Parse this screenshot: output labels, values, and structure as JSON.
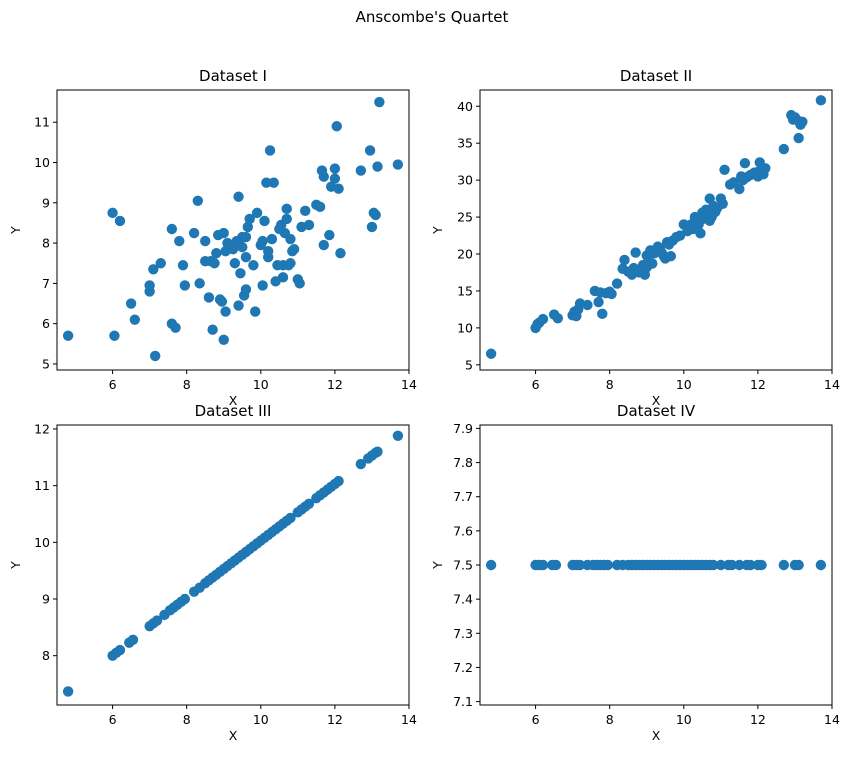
{
  "figure": {
    "suptitle": "Anscombe's Quartet"
  },
  "colors": {
    "marker": "#1f77b4",
    "axes": "#000000",
    "background": "#ffffff"
  },
  "chart_data": [
    {
      "type": "scatter",
      "title": "Dataset I",
      "xlabel": "X",
      "ylabel": "Y",
      "xlim": [
        4.5,
        14
      ],
      "ylim": [
        4.85,
        11.8
      ],
      "xticks": [
        6,
        8,
        10,
        12,
        14
      ],
      "yticks": [
        5,
        6,
        7,
        8,
        9,
        10,
        11
      ],
      "ytick_labels": [
        "5",
        "6",
        "7",
        "8",
        "9",
        "10",
        "11"
      ],
      "grid": false,
      "points": [
        [
          4.8,
          5.7
        ],
        [
          6.0,
          8.75
        ],
        [
          6.2,
          8.55
        ],
        [
          6.05,
          5.7
        ],
        [
          6.5,
          6.5
        ],
        [
          6.6,
          6.1
        ],
        [
          7.0,
          6.8
        ],
        [
          7.0,
          6.95
        ],
        [
          7.1,
          7.35
        ],
        [
          7.15,
          5.2
        ],
        [
          7.3,
          7.5
        ],
        [
          7.6,
          8.35
        ],
        [
          7.6,
          6.0
        ],
        [
          7.7,
          5.9
        ],
        [
          7.8,
          8.05
        ],
        [
          7.9,
          7.45
        ],
        [
          7.95,
          6.95
        ],
        [
          8.2,
          8.25
        ],
        [
          8.3,
          9.05
        ],
        [
          8.35,
          7.0
        ],
        [
          8.5,
          8.05
        ],
        [
          8.5,
          7.55
        ],
        [
          8.6,
          6.65
        ],
        [
          8.65,
          7.55
        ],
        [
          8.7,
          5.85
        ],
        [
          8.75,
          7.5
        ],
        [
          8.8,
          7.75
        ],
        [
          8.85,
          8.2
        ],
        [
          8.9,
          6.6
        ],
        [
          8.95,
          6.55
        ],
        [
          9.0,
          8.25
        ],
        [
          9.0,
          5.6
        ],
        [
          9.05,
          7.8
        ],
        [
          9.05,
          6.3
        ],
        [
          9.1,
          8.0
        ],
        [
          9.2,
          7.9
        ],
        [
          9.25,
          7.85
        ],
        [
          9.3,
          7.5
        ],
        [
          9.35,
          8.05
        ],
        [
          9.4,
          6.45
        ],
        [
          9.4,
          9.15
        ],
        [
          9.45,
          7.25
        ],
        [
          9.5,
          7.9
        ],
        [
          9.5,
          8.15
        ],
        [
          9.55,
          6.7
        ],
        [
          9.6,
          7.65
        ],
        [
          9.6,
          6.85
        ],
        [
          9.6,
          8.15
        ],
        [
          9.65,
          8.4
        ],
        [
          9.7,
          8.6
        ],
        [
          9.8,
          7.45
        ],
        [
          9.85,
          6.3
        ],
        [
          9.9,
          8.75
        ],
        [
          10.0,
          7.95
        ],
        [
          10.05,
          6.95
        ],
        [
          10.05,
          8.05
        ],
        [
          10.1,
          8.55
        ],
        [
          10.15,
          9.5
        ],
        [
          10.2,
          7.65
        ],
        [
          10.2,
          7.8
        ],
        [
          10.25,
          10.3
        ],
        [
          10.3,
          8.1
        ],
        [
          10.35,
          9.5
        ],
        [
          10.4,
          7.05
        ],
        [
          10.45,
          7.45
        ],
        [
          10.5,
          8.35
        ],
        [
          10.55,
          8.45
        ],
        [
          10.6,
          7.45
        ],
        [
          10.6,
          7.15
        ],
        [
          10.65,
          8.25
        ],
        [
          10.7,
          8.6
        ],
        [
          10.7,
          8.85
        ],
        [
          10.75,
          7.45
        ],
        [
          10.8,
          7.5
        ],
        [
          10.8,
          8.1
        ],
        [
          10.85,
          7.8
        ],
        [
          10.9,
          7.85
        ],
        [
          11.0,
          7.1
        ],
        [
          11.05,
          7.0
        ],
        [
          11.1,
          8.4
        ],
        [
          11.2,
          8.8
        ],
        [
          11.3,
          8.45
        ],
        [
          11.5,
          8.95
        ],
        [
          11.6,
          8.9
        ],
        [
          11.65,
          9.8
        ],
        [
          11.7,
          9.65
        ],
        [
          11.7,
          7.95
        ],
        [
          11.85,
          8.2
        ],
        [
          11.9,
          9.4
        ],
        [
          12.0,
          9.85
        ],
        [
          12.0,
          9.6
        ],
        [
          12.05,
          10.9
        ],
        [
          12.1,
          9.35
        ],
        [
          12.15,
          7.75
        ],
        [
          12.7,
          9.8
        ],
        [
          12.95,
          10.3
        ],
        [
          13.0,
          8.4
        ],
        [
          13.05,
          8.75
        ],
        [
          13.1,
          8.7
        ],
        [
          13.15,
          9.9
        ],
        [
          13.2,
          11.5
        ],
        [
          13.7,
          9.95
        ]
      ]
    },
    {
      "type": "scatter",
      "title": "Dataset II",
      "xlabel": "X",
      "ylabel": "Y",
      "xlim": [
        4.5,
        14
      ],
      "ylim": [
        4.3,
        42.2
      ],
      "xticks": [
        6,
        8,
        10,
        12,
        14
      ],
      "yticks": [
        5,
        10,
        15,
        20,
        25,
        30,
        35,
        40
      ],
      "ytick_labels": [
        "5",
        "10",
        "15",
        "20",
        "25",
        "30",
        "35",
        "40"
      ],
      "grid": false,
      "points": [
        [
          4.8,
          6.5
        ],
        [
          6.0,
          10.0
        ],
        [
          6.05,
          10.5
        ],
        [
          6.1,
          10.7
        ],
        [
          6.2,
          11.2
        ],
        [
          6.5,
          11.8
        ],
        [
          6.6,
          11.3
        ],
        [
          7.0,
          11.7
        ],
        [
          7.05,
          12.2
        ],
        [
          7.1,
          11.6
        ],
        [
          7.15,
          12.5
        ],
        [
          7.2,
          13.3
        ],
        [
          7.4,
          13.1
        ],
        [
          7.6,
          15.0
        ],
        [
          7.7,
          13.5
        ],
        [
          7.75,
          14.8
        ],
        [
          7.8,
          11.9
        ],
        [
          7.9,
          14.7
        ],
        [
          8.0,
          14.9
        ],
        [
          8.05,
          14.6
        ],
        [
          8.2,
          16.0
        ],
        [
          8.35,
          18.0
        ],
        [
          8.4,
          19.2
        ],
        [
          8.5,
          17.6
        ],
        [
          8.6,
          17.2
        ],
        [
          8.65,
          18.1
        ],
        [
          8.7,
          20.2
        ],
        [
          8.8,
          17.5
        ],
        [
          8.9,
          18.5
        ],
        [
          8.95,
          17.2
        ],
        [
          9.0,
          19.8
        ],
        [
          9.0,
          18.2
        ],
        [
          9.05,
          19.0
        ],
        [
          9.1,
          20.5
        ],
        [
          9.15,
          18.7
        ],
        [
          9.2,
          20.1
        ],
        [
          9.3,
          21.0
        ],
        [
          9.35,
          20.8
        ],
        [
          9.4,
          20.2
        ],
        [
          9.45,
          19.8
        ],
        [
          9.5,
          19.4
        ],
        [
          9.55,
          21.6
        ],
        [
          9.6,
          21.3
        ],
        [
          9.65,
          19.7
        ],
        [
          9.7,
          21.8
        ],
        [
          9.8,
          22.3
        ],
        [
          9.9,
          22.5
        ],
        [
          10.0,
          24.0
        ],
        [
          10.1,
          23.1
        ],
        [
          10.15,
          23.7
        ],
        [
          10.2,
          24.0
        ],
        [
          10.25,
          23.4
        ],
        [
          10.3,
          25.0
        ],
        [
          10.35,
          24.6
        ],
        [
          10.4,
          24.0
        ],
        [
          10.45,
          22.8
        ],
        [
          10.5,
          25.6
        ],
        [
          10.55,
          24.8
        ],
        [
          10.6,
          26.0
        ],
        [
          10.65,
          25.5
        ],
        [
          10.7,
          24.5
        ],
        [
          10.7,
          27.5
        ],
        [
          10.75,
          25.0
        ],
        [
          10.8,
          26.5
        ],
        [
          10.85,
          25.7
        ],
        [
          10.9,
          26.2
        ],
        [
          11.0,
          27.5
        ],
        [
          11.05,
          26.8
        ],
        [
          11.1,
          31.4
        ],
        [
          11.25,
          29.4
        ],
        [
          11.35,
          29.7
        ],
        [
          11.5,
          28.8
        ],
        [
          11.55,
          30.5
        ],
        [
          11.6,
          30.0
        ],
        [
          11.65,
          32.3
        ],
        [
          11.7,
          30.4
        ],
        [
          11.8,
          30.7
        ],
        [
          11.9,
          31.0
        ],
        [
          12.0,
          31.1
        ],
        [
          12.0,
          30.5
        ],
        [
          12.05,
          32.4
        ],
        [
          12.1,
          31.0
        ],
        [
          12.15,
          30.8
        ],
        [
          12.2,
          31.6
        ],
        [
          12.7,
          34.2
        ],
        [
          12.9,
          38.8
        ],
        [
          12.95,
          38.2
        ],
        [
          13.0,
          38.5
        ],
        [
          13.1,
          35.7
        ],
        [
          13.1,
          38.0
        ],
        [
          13.15,
          37.5
        ],
        [
          13.2,
          37.9
        ],
        [
          13.7,
          40.8
        ]
      ]
    },
    {
      "type": "scatter",
      "title": "Dataset III",
      "xlabel": "X",
      "ylabel": "Y",
      "xlim": [
        4.5,
        14
      ],
      "ylim": [
        7.13,
        12.07
      ],
      "xticks": [
        6,
        8,
        10,
        12,
        14
      ],
      "yticks": [
        8,
        9,
        10,
        11,
        12
      ],
      "ytick_labels": [
        "8",
        "9",
        "10",
        "11",
        "12"
      ],
      "grid": false,
      "points": [
        [
          4.8,
          7.37
        ],
        [
          6.0,
          8.0
        ],
        [
          6.1,
          8.05
        ],
        [
          6.2,
          8.1
        ],
        [
          6.45,
          8.23
        ],
        [
          6.55,
          8.28
        ],
        [
          7.0,
          8.52
        ],
        [
          7.1,
          8.57
        ],
        [
          7.2,
          8.62
        ],
        [
          7.4,
          8.72
        ],
        [
          7.55,
          8.8
        ],
        [
          7.65,
          8.85
        ],
        [
          7.75,
          8.9
        ],
        [
          7.85,
          8.95
        ],
        [
          7.95,
          9.0
        ],
        [
          8.2,
          9.13
        ],
        [
          8.35,
          9.2
        ],
        [
          8.5,
          9.28
        ],
        [
          8.6,
          9.33
        ],
        [
          8.7,
          9.38
        ],
        [
          8.8,
          9.43
        ],
        [
          8.9,
          9.48
        ],
        [
          9.0,
          9.53
        ],
        [
          9.1,
          9.58
        ],
        [
          9.2,
          9.63
        ],
        [
          9.3,
          9.68
        ],
        [
          9.4,
          9.73
        ],
        [
          9.5,
          9.78
        ],
        [
          9.6,
          9.83
        ],
        [
          9.7,
          9.88
        ],
        [
          9.8,
          9.93
        ],
        [
          9.9,
          9.98
        ],
        [
          10.0,
          10.03
        ],
        [
          10.1,
          10.08
        ],
        [
          10.2,
          10.13
        ],
        [
          10.3,
          10.18
        ],
        [
          10.4,
          10.23
        ],
        [
          10.5,
          10.28
        ],
        [
          10.6,
          10.33
        ],
        [
          10.7,
          10.38
        ],
        [
          10.8,
          10.43
        ],
        [
          11.0,
          10.53
        ],
        [
          11.1,
          10.58
        ],
        [
          11.2,
          10.63
        ],
        [
          11.3,
          10.68
        ],
        [
          11.5,
          10.78
        ],
        [
          11.6,
          10.83
        ],
        [
          11.7,
          10.88
        ],
        [
          11.8,
          10.93
        ],
        [
          11.9,
          10.98
        ],
        [
          12.0,
          11.03
        ],
        [
          12.1,
          11.08
        ],
        [
          12.7,
          11.38
        ],
        [
          12.9,
          11.48
        ],
        [
          13.0,
          11.53
        ],
        [
          13.1,
          11.58
        ],
        [
          13.15,
          11.6
        ],
        [
          13.7,
          11.88
        ]
      ]
    },
    {
      "type": "scatter",
      "title": "Dataset IV",
      "xlabel": "X",
      "ylabel": "Y",
      "xlim": [
        4.5,
        14
      ],
      "ylim": [
        7.09,
        7.91
      ],
      "xticks": [
        6,
        8,
        10,
        12,
        14
      ],
      "yticks": [
        7.1,
        7.2,
        7.3,
        7.4,
        7.5,
        7.6,
        7.7,
        7.8,
        7.9
      ],
      "ytick_labels": [
        "7.1",
        "7.2",
        "7.3",
        "7.4",
        "7.5",
        "7.6",
        "7.7",
        "7.8",
        "7.9"
      ],
      "grid": false,
      "points": [
        [
          4.8,
          7.5
        ],
        [
          6.0,
          7.5
        ],
        [
          6.1,
          7.5
        ],
        [
          6.2,
          7.5
        ],
        [
          6.45,
          7.5
        ],
        [
          6.55,
          7.5
        ],
        [
          7.0,
          7.5
        ],
        [
          7.1,
          7.5
        ],
        [
          7.2,
          7.5
        ],
        [
          7.4,
          7.5
        ],
        [
          7.55,
          7.5
        ],
        [
          7.65,
          7.5
        ],
        [
          7.75,
          7.5
        ],
        [
          7.85,
          7.5
        ],
        [
          7.95,
          7.5
        ],
        [
          8.2,
          7.5
        ],
        [
          8.35,
          7.5
        ],
        [
          8.5,
          7.5
        ],
        [
          8.6,
          7.5
        ],
        [
          8.7,
          7.5
        ],
        [
          8.8,
          7.5
        ],
        [
          8.9,
          7.5
        ],
        [
          9.0,
          7.5
        ],
        [
          9.1,
          7.5
        ],
        [
          9.2,
          7.5
        ],
        [
          9.3,
          7.5
        ],
        [
          9.4,
          7.5
        ],
        [
          9.5,
          7.5
        ],
        [
          9.6,
          7.5
        ],
        [
          9.7,
          7.5
        ],
        [
          9.8,
          7.5
        ],
        [
          9.9,
          7.5
        ],
        [
          10.0,
          7.5
        ],
        [
          10.1,
          7.5
        ],
        [
          10.2,
          7.5
        ],
        [
          10.3,
          7.5
        ],
        [
          10.4,
          7.5
        ],
        [
          10.5,
          7.5
        ],
        [
          10.6,
          7.5
        ],
        [
          10.7,
          7.5
        ],
        [
          10.8,
          7.5
        ],
        [
          11.0,
          7.5
        ],
        [
          11.2,
          7.5
        ],
        [
          11.3,
          7.5
        ],
        [
          11.5,
          7.5
        ],
        [
          11.7,
          7.5
        ],
        [
          11.8,
          7.5
        ],
        [
          12.0,
          7.5
        ],
        [
          12.1,
          7.5
        ],
        [
          12.7,
          7.5
        ],
        [
          13.0,
          7.5
        ],
        [
          13.1,
          7.5
        ],
        [
          13.7,
          7.5
        ]
      ]
    }
  ]
}
